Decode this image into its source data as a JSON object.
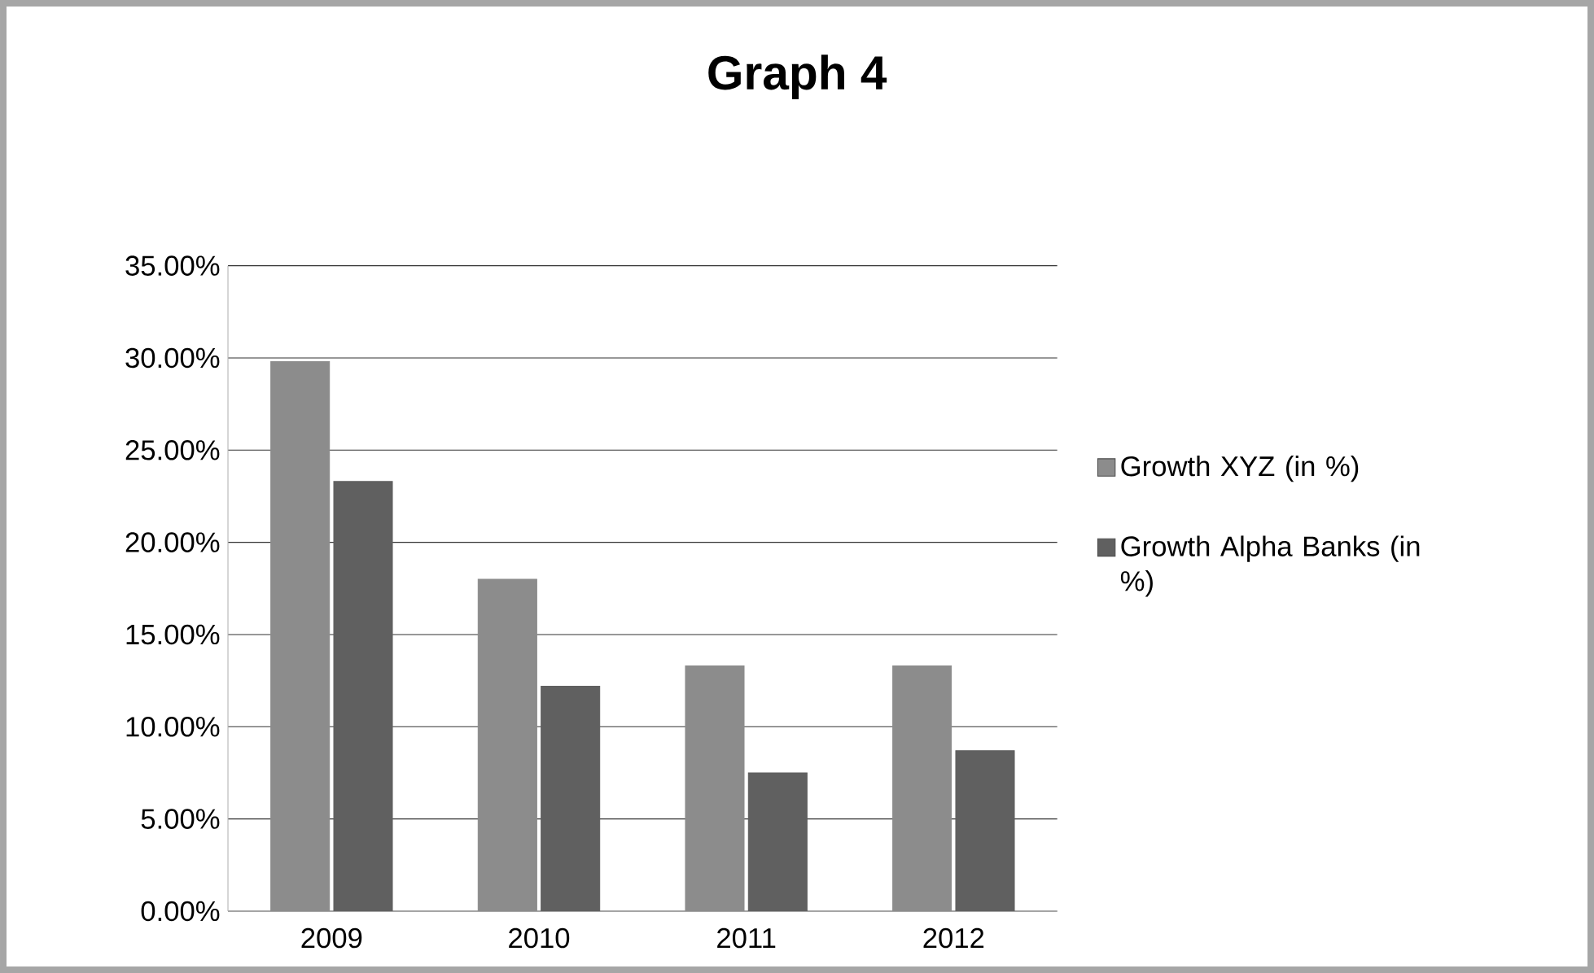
{
  "chart_data": {
    "type": "bar",
    "title": "Graph 4",
    "categories": [
      "2009",
      "2010",
      "2011",
      "2012"
    ],
    "series": [
      {
        "name": "Growth XYZ (in %)",
        "color": "#8c8c8c",
        "values": [
          29.8,
          18.0,
          13.3,
          13.3
        ]
      },
      {
        "name": "Growth Alpha Banks (in %)",
        "color": "#606060",
        "values": [
          23.3,
          12.2,
          7.5,
          8.7
        ]
      }
    ],
    "ylim": [
      0,
      35
    ],
    "yticks": [
      {
        "value": 0,
        "label": "0.00%"
      },
      {
        "value": 5,
        "label": "5.00%"
      },
      {
        "value": 10,
        "label": "10.00%"
      },
      {
        "value": 15,
        "label": "15.00%"
      },
      {
        "value": 20,
        "label": "20.00%"
      },
      {
        "value": 25,
        "label": "25.00%"
      },
      {
        "value": 30,
        "label": "30.00%"
      },
      {
        "value": 35,
        "label": "35.00%"
      }
    ],
    "grid": "y",
    "legend": "right"
  }
}
